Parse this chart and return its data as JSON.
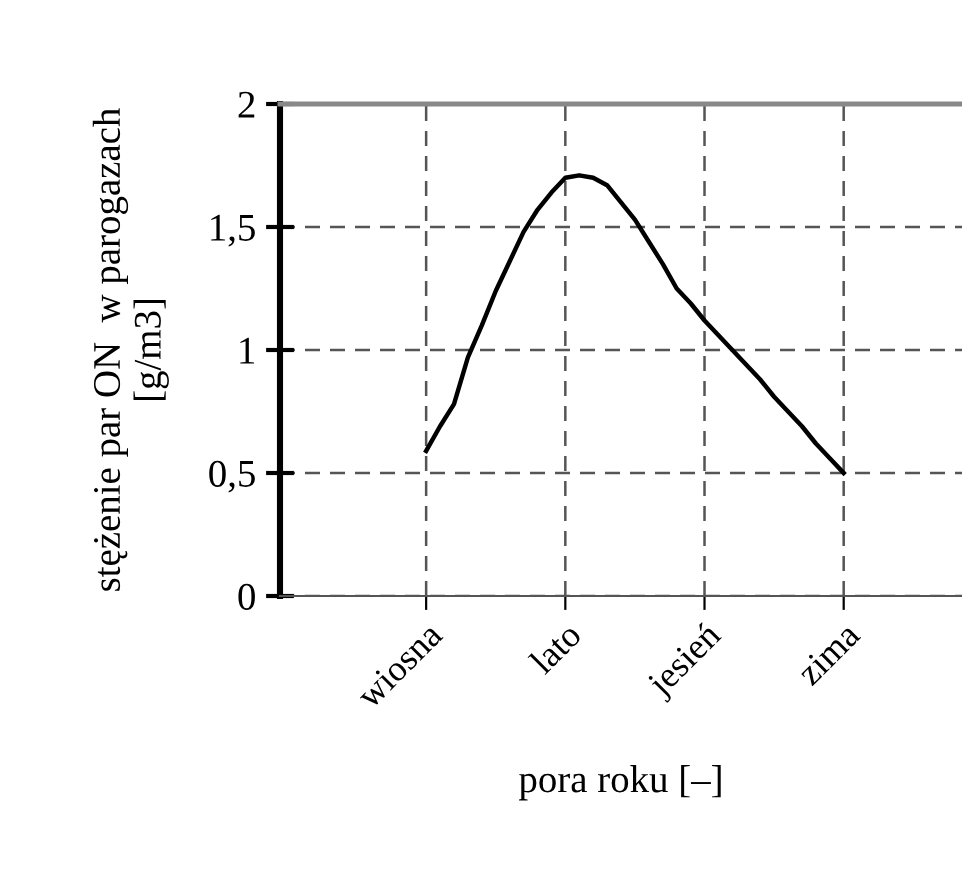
{
  "chart_data": {
    "type": "line",
    "xlabel": "pora roku [–]",
    "ylabel": "stężenie par ON  w parogazach\n[g/m3]",
    "categories": [
      null,
      null,
      null,
      null,
      null,
      null,
      null,
      null,
      null,
      null,
      "wiosna",
      null,
      null,
      null,
      null,
      null,
      null,
      null,
      null,
      null,
      "lato",
      null,
      null,
      null,
      null,
      null,
      null,
      null,
      null,
      null,
      "jesień",
      null,
      null,
      null,
      null,
      null,
      null,
      null,
      null,
      null,
      "zima",
      null,
      null,
      null,
      null,
      null,
      null,
      null,
      null
    ],
    "values": [
      null,
      null,
      null,
      null,
      null,
      null,
      null,
      null,
      null,
      null,
      0.59,
      0.69,
      0.78,
      0.97,
      1.1,
      1.24,
      1.36,
      1.48,
      1.57,
      1.64,
      1.7,
      1.71,
      1.7,
      1.67,
      1.6,
      1.53,
      1.44,
      1.35,
      1.25,
      1.19,
      1.12,
      1.06,
      1.0,
      0.94,
      0.88,
      0.81,
      0.75,
      0.69,
      0.62,
      0.56,
      0.5,
      null,
      null,
      null,
      null,
      null,
      null,
      null,
      null
    ],
    "color": "#000000",
    "ylim": [
      0,
      2
    ],
    "yticks": [
      {
        "value": 0,
        "label": "0"
      },
      {
        "value": 0.5,
        "label": "0,5"
      },
      {
        "value": 1,
        "label": "1"
      },
      {
        "value": 1.5,
        "label": "1,5"
      },
      {
        "value": 2,
        "label": "2"
      }
    ],
    "grid": true,
    "marker": "none",
    "line_style": "solid"
  }
}
